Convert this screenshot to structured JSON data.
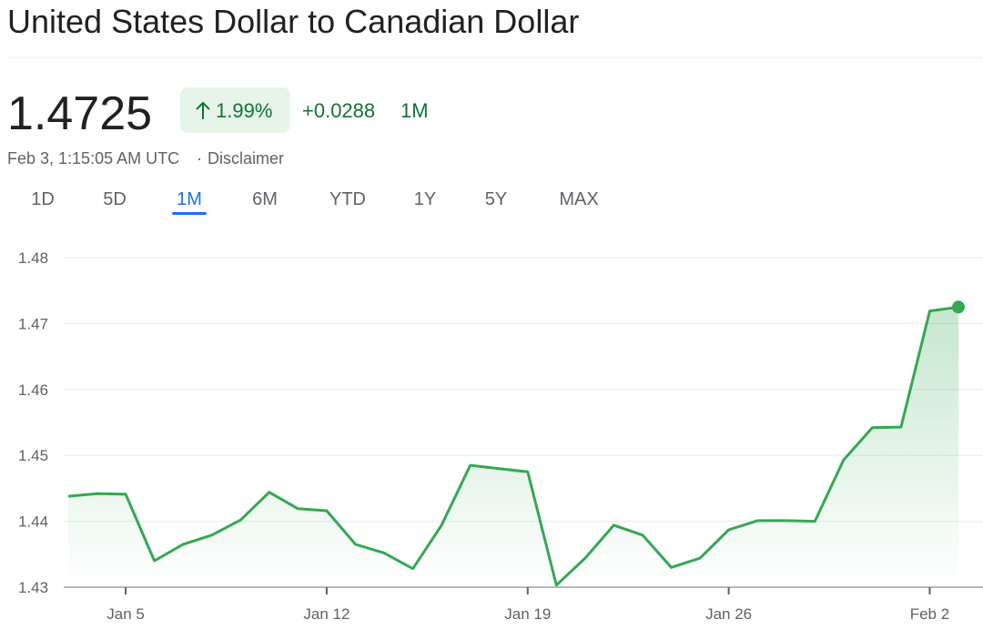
{
  "header": {
    "title": "United States Dollar to Canadian Dollar",
    "price": "1.4725",
    "change_percent": "1.99%",
    "change_value": "+0.0288",
    "change_period": "1M",
    "timestamp": "Feb 3, 1:15:05 AM UTC",
    "separator": "·",
    "disclaimer": "Disclaimer"
  },
  "tabs": {
    "items": [
      "1D",
      "5D",
      "1M",
      "6M",
      "YTD",
      "1Y",
      "5Y",
      "MAX"
    ],
    "active_index": 2
  },
  "chart_data": {
    "type": "line",
    "x": [
      "Jan 3",
      "Jan 4",
      "Jan 5",
      "Jan 6",
      "Jan 7",
      "Jan 8",
      "Jan 9",
      "Jan 10",
      "Jan 11",
      "Jan 12",
      "Jan 13",
      "Jan 14",
      "Jan 15",
      "Jan 16",
      "Jan 17",
      "Jan 18",
      "Jan 19",
      "Jan 20",
      "Jan 21",
      "Jan 22",
      "Jan 23",
      "Jan 24",
      "Jan 25",
      "Jan 26",
      "Jan 27",
      "Jan 28",
      "Jan 29",
      "Jan 30",
      "Jan 31",
      "Feb 1",
      "Feb 2",
      "Feb 3"
    ],
    "values": [
      1.4438,
      1.4442,
      1.4441,
      1.434,
      1.4365,
      1.4379,
      1.4402,
      1.4444,
      1.4419,
      1.4416,
      1.4365,
      1.4352,
      1.4328,
      1.4394,
      1.4485,
      1.448,
      1.4475,
      1.4303,
      1.4344,
      1.4394,
      1.4379,
      1.433,
      1.4344,
      1.4387,
      1.4401,
      1.4401,
      1.44,
      1.4493,
      1.4542,
      1.4543,
      1.4719,
      1.4725
    ],
    "color": "#34a853",
    "ylim": [
      1.43,
      1.48
    ],
    "yticks": [
      1.43,
      1.44,
      1.45,
      1.46,
      1.47,
      1.48
    ],
    "xticks": [
      "Jan 5",
      "Jan 12",
      "Jan 19",
      "Jan 26",
      "Feb 2"
    ],
    "grid": true
  }
}
